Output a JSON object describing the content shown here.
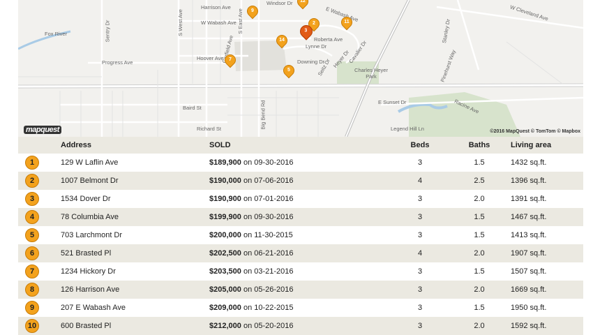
{
  "map": {
    "logo": "mapquest",
    "attribution": "©2016 MapQuest © TomTom © Mapbox",
    "labels": [
      "Fox River",
      "Sentry Dr",
      "Progress Ave",
      "S West Ave",
      "S East Ave",
      "Harrison Ave",
      "W Wabash Ave",
      "Windsor Dr",
      "Garfield Ave",
      "Hoover Ave",
      "E Wabash Ave",
      "Lynne Dr",
      "Roberta Ave",
      "Downing Dr",
      "Seitz Dr",
      "Heyer Dr",
      "Cavalier Dr",
      "Charles Heyer Park",
      "E Sunset Dr",
      "Racine Ave",
      "Legend Hill Ln",
      "Baird St",
      "Richard St",
      "Big Bend Rd",
      "Pinehurst Way",
      "W Cleveland Ave",
      "Stanley Dr"
    ],
    "pins": [
      "2",
      "3",
      "5",
      "7",
      "9",
      "11",
      "12",
      "14"
    ]
  },
  "table": {
    "headers": {
      "address": "Address",
      "sold": "SOLD",
      "beds": "Beds",
      "baths": "Baths",
      "area": "Living area"
    },
    "rows": [
      {
        "n": "1",
        "address": "129 W Laflin Ave",
        "price": "$189,900",
        "date": "on 09-30-2016",
        "beds": "3",
        "baths": "1.5",
        "area": "1432 sq.ft."
      },
      {
        "n": "2",
        "address": "1007 Belmont Dr",
        "price": "$190,000",
        "date": "on 07-06-2016",
        "beds": "4",
        "baths": "2.5",
        "area": "1396 sq.ft."
      },
      {
        "n": "3",
        "address": "1534 Dover Dr",
        "price": "$190,900",
        "date": "on 07-01-2016",
        "beds": "3",
        "baths": "2.0",
        "area": "1391 sq.ft."
      },
      {
        "n": "4",
        "address": "78 Columbia Ave",
        "price": "$199,900",
        "date": "on 09-30-2016",
        "beds": "3",
        "baths": "1.5",
        "area": "1467 sq.ft."
      },
      {
        "n": "5",
        "address": "703 Larchmont Dr",
        "price": "$200,000",
        "date": "on 11-30-2015",
        "beds": "3",
        "baths": "1.5",
        "area": "1413 sq.ft."
      },
      {
        "n": "6",
        "address": "521 Brasted Pl",
        "price": "$202,500",
        "date": "on 06-21-2016",
        "beds": "4",
        "baths": "2.0",
        "area": "1907 sq.ft."
      },
      {
        "n": "7",
        "address": "1234 Hickory Dr",
        "price": "$203,500",
        "date": "on 03-21-2016",
        "beds": "3",
        "baths": "1.5",
        "area": "1507 sq.ft."
      },
      {
        "n": "8",
        "address": "126 Harrison Ave",
        "price": "$205,000",
        "date": "on 05-26-2016",
        "beds": "3",
        "baths": "2.0",
        "area": "1669 sq.ft."
      },
      {
        "n": "9",
        "address": "207 E Wabash Ave",
        "price": "$209,000",
        "date": "on 10-22-2015",
        "beds": "3",
        "baths": "1.5",
        "area": "1950 sq.ft."
      },
      {
        "n": "10",
        "address": "600 Brasted Pl",
        "price": "$212,000",
        "date": "on 05-20-2016",
        "beds": "3",
        "baths": "2.0",
        "area": "1592 sq.ft."
      }
    ]
  },
  "colors": {
    "pin": "#f3a21d",
    "pin_active": "#e25b16",
    "row_alt": "#ebe9e1",
    "park": "#d7e3cc",
    "water": "#a9cbe6"
  }
}
